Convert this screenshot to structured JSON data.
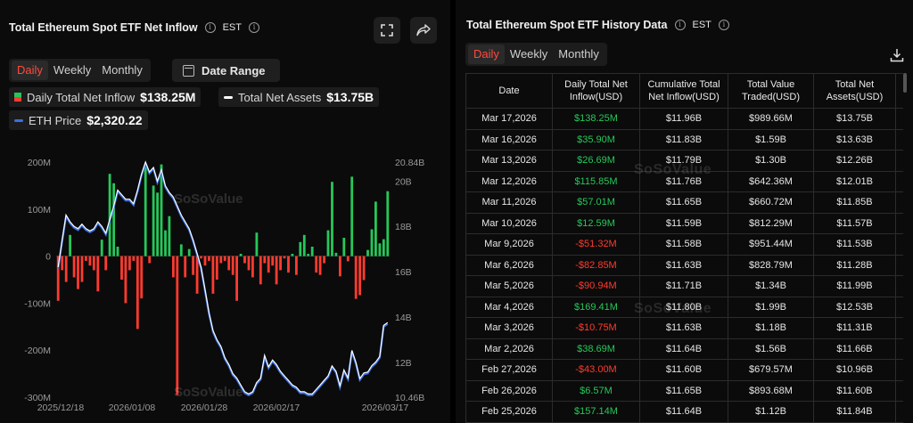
{
  "left": {
    "title": "Total Ethereum Spot ETF Net Inflow",
    "timezone": "EST",
    "period_tabs": [
      {
        "label": "Daily",
        "active": true
      },
      {
        "label": "Weekly",
        "active": false
      },
      {
        "label": "Monthly",
        "active": false
      }
    ],
    "date_range_label": "Date Range",
    "legend": {
      "inflow_label": "Daily Total Net Inflow",
      "inflow_value": "$138.25M",
      "assets_label": "Total Net Assets",
      "assets_value": "$13.75B",
      "eth_label": "ETH Price",
      "eth_value": "$2,320.22"
    },
    "watermark": "SoSoValue"
  },
  "right": {
    "title": "Total Ethereum Spot ETF History Data",
    "timezone": "EST",
    "period_tabs": [
      {
        "label": "Daily",
        "active": true
      },
      {
        "label": "Weekly",
        "active": false
      },
      {
        "label": "Monthly",
        "active": false
      }
    ],
    "columns": [
      "Date",
      "Daily Total Net Inflow(USD)",
      "Cumulative Total Net Inflow(USD)",
      "Total Value Traded(USD)",
      "Total Net Assets(USD)"
    ],
    "rows": [
      [
        "Mar 17,2026",
        "$138.25M",
        "$11.96B",
        "$989.66M",
        "$13.75B"
      ],
      [
        "Mar 16,2026",
        "$35.90M",
        "$11.83B",
        "$1.59B",
        "$13.63B"
      ],
      [
        "Mar 13,2026",
        "$26.69M",
        "$11.79B",
        "$1.30B",
        "$12.26B"
      ],
      [
        "Mar 12,2026",
        "$115.85M",
        "$11.76B",
        "$642.36M",
        "$12.01B"
      ],
      [
        "Mar 11,2026",
        "$57.01M",
        "$11.65B",
        "$660.72M",
        "$11.85B"
      ],
      [
        "Mar 10,2026",
        "$12.59M",
        "$11.59B",
        "$812.29M",
        "$11.57B"
      ],
      [
        "Mar 9,2026",
        "-$51.32M",
        "$11.58B",
        "$951.44M",
        "$11.53B"
      ],
      [
        "Mar 6,2026",
        "-$82.85M",
        "$11.63B",
        "$828.79M",
        "$11.28B"
      ],
      [
        "Mar 5,2026",
        "-$90.94M",
        "$11.71B",
        "$1.34B",
        "$11.99B"
      ],
      [
        "Mar 4,2026",
        "$169.41M",
        "$11.80B",
        "$1.99B",
        "$12.53B"
      ],
      [
        "Mar 3,2026",
        "-$10.75M",
        "$11.63B",
        "$1.18B",
        "$11.31B"
      ],
      [
        "Mar 2,2026",
        "$38.69M",
        "$11.64B",
        "$1.56B",
        "$11.66B"
      ],
      [
        "Feb 27,2026",
        "-$43.00M",
        "$11.60B",
        "$679.57M",
        "$10.96B"
      ],
      [
        "Feb 26,2026",
        "$6.57M",
        "$11.65B",
        "$893.68M",
        "$11.60B"
      ],
      [
        "Feb 25,2026",
        "$157.14M",
        "$11.64B",
        "$1.12B",
        "$11.84B"
      ]
    ]
  },
  "colors": {
    "positive": "#26c75a",
    "negative": "#ff3b2f",
    "accent": "#ff4b3e",
    "assets_line": "#ffffff",
    "eth_line": "#3a6fe0"
  },
  "icons": {
    "fullscreen": "fullscreen-icon",
    "share": "share-icon",
    "download": "download-icon",
    "info": "info-icon",
    "calendar": "calendar-icon"
  },
  "chart_data": {
    "type": "bar",
    "x_ticks": [
      "2025/12/18",
      "2026/01/08",
      "2026/01/28",
      "2026/02/17",
      "2026/03/17"
    ],
    "left_ticks": [
      "200M",
      "100M",
      "0",
      "-100M",
      "-200M",
      "-300M"
    ],
    "right_ticks": [
      "20.84B",
      "20B",
      "18B",
      "16B",
      "14B",
      "12B",
      "10.46B"
    ],
    "y_left_range": [
      -300,
      200
    ],
    "y_right_range": [
      10.46,
      20.84
    ],
    "series": [
      {
        "name": "Daily Total Net Inflow",
        "values": [
          -95,
          -30,
          -55,
          45,
          -45,
          -70,
          -55,
          -10,
          -20,
          -30,
          -75,
          35,
          -30,
          175,
          155,
          20,
          -50,
          -100,
          -30,
          -10,
          -155,
          -90,
          190,
          -15,
          150,
          135,
          195,
          55,
          85,
          -45,
          -295,
          25,
          -45,
          15,
          -40,
          -80,
          -5,
          -20,
          -10,
          -80,
          -50,
          -15,
          -10,
          -30,
          -40,
          -95,
          5,
          -15,
          -30,
          -45,
          50,
          -60,
          -15,
          -35,
          -20,
          -60,
          -30,
          -5,
          -35,
          5,
          -40,
          30,
          45,
          5,
          20,
          -35,
          -40,
          -15,
          55,
          158,
          7,
          -43,
          39,
          -11,
          169,
          -91,
          -83,
          -51,
          13,
          57,
          116,
          27,
          36,
          138
        ]
      },
      {
        "name": "Total Net Assets",
        "values": [
          16.2,
          17.4,
          18.5,
          18.2,
          18.0,
          17.9,
          18.1,
          17.9,
          17.8,
          17.9,
          18.2,
          18.0,
          17.7,
          18.3,
          18.9,
          19.6,
          19.4,
          19.2,
          19.2,
          19.0,
          19.6,
          20.3,
          20.84,
          20.4,
          20.6,
          20.0,
          20.5,
          19.8,
          19.5,
          19.3,
          18.9,
          18.5,
          18.2,
          17.9,
          17.4,
          16.8,
          16.2,
          15.2,
          14.2,
          13.4,
          13.0,
          12.7,
          12.2,
          11.9,
          11.5,
          11.3,
          11.0,
          10.7,
          10.6,
          10.7,
          11.1,
          11.3,
          12.3,
          11.8,
          12.1,
          11.9,
          11.6,
          11.4,
          11.2,
          11.0,
          10.9,
          10.7,
          10.7,
          10.6,
          10.6,
          10.8,
          11.0,
          11.2,
          11.4,
          11.84,
          11.6,
          10.96,
          11.66,
          11.31,
          12.53,
          11.99,
          11.28,
          11.53,
          11.57,
          11.85,
          12.01,
          12.26,
          13.63,
          13.75
        ]
      }
    ]
  }
}
